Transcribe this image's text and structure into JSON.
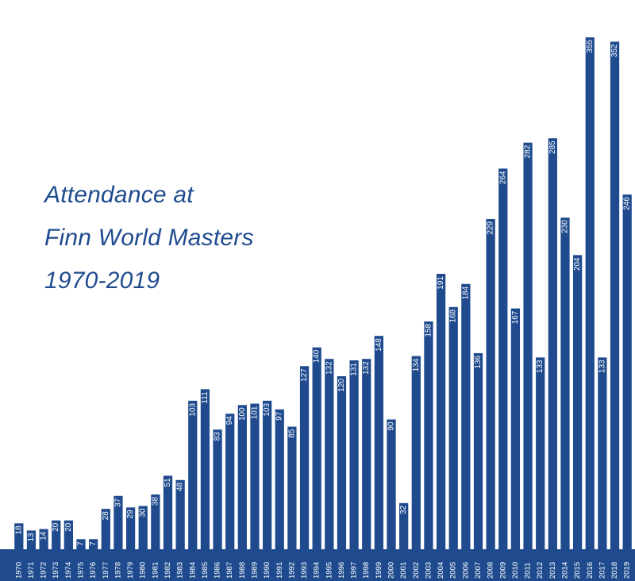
{
  "chart_data": {
    "type": "bar",
    "title": [
      "Attendance at",
      "Finn World Masters",
      "1970-2019"
    ],
    "xlabel": "",
    "ylabel": "",
    "ylim": [
      0,
      360
    ],
    "grid": false,
    "legend": "none",
    "colors": {
      "bar": "#1f4b8e",
      "label": "#ffffff",
      "title": "#1f4b8e",
      "background": "#ffffff"
    },
    "categories": [
      "1970",
      "1971",
      "1972",
      "1973",
      "1974",
      "1975",
      "1976",
      "1977",
      "1978",
      "1979",
      "1980",
      "1981",
      "1982",
      "1983",
      "1984",
      "1985",
      "1986",
      "1987",
      "1988",
      "1989",
      "1990",
      "1991",
      "1992",
      "1993",
      "1994",
      "1995",
      "1996",
      "1997",
      "1998",
      "1999",
      "2000",
      "2001",
      "2002",
      "2003",
      "2004",
      "2005",
      "2006",
      "2007",
      "2008",
      "2009",
      "2010",
      "2011",
      "2012",
      "2013",
      "2014",
      "2015",
      "2016",
      "2017",
      "2018",
      "2019"
    ],
    "values": [
      18,
      13,
      14,
      20,
      20,
      7,
      7,
      28,
      37,
      29,
      30,
      38,
      51,
      48,
      103,
      111,
      83,
      94,
      100,
      101,
      103,
      97,
      85,
      127,
      140,
      132,
      120,
      131,
      132,
      148,
      90,
      32,
      134,
      158,
      191,
      168,
      184,
      136,
      229,
      264,
      167,
      282,
      133,
      285,
      230,
      204,
      355,
      133,
      352,
      246
    ]
  }
}
